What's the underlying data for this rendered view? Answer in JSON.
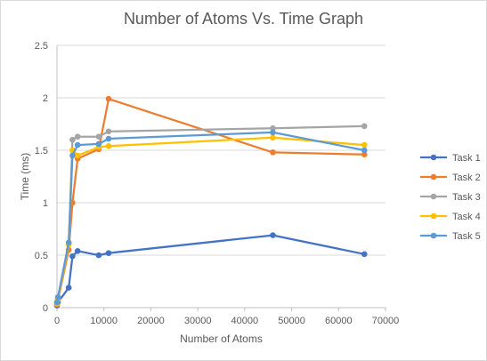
{
  "chart_data": {
    "type": "scatter",
    "title": "Number of Atoms Vs. Time Graph",
    "xlabel": "Number  of Atoms",
    "ylabel": "Time (ms)",
    "xlim": [
      0,
      70000
    ],
    "ylim": [
      0,
      2.5
    ],
    "xticks": [
      "0",
      "10000",
      "20000",
      "30000",
      "40000",
      "50000",
      "60000",
      "70000"
    ],
    "yticks": [
      "0",
      "0.5",
      "1",
      "1.5",
      "2",
      "2.5"
    ],
    "grid": "horizontal",
    "legend_position": "right",
    "x": [
      0,
      200,
      2500,
      3300,
      4400,
      8900,
      11000,
      46000,
      65500
    ],
    "series": [
      {
        "name": "Task 1",
        "color": "#4472C4",
        "values": [
          0.02,
          0.05,
          0.19,
          0.49,
          0.54,
          0.5,
          0.52,
          0.69,
          0.51
        ]
      },
      {
        "name": "Task 2",
        "color": "#ED7D31",
        "values": [
          0.03,
          0.07,
          0.55,
          1.0,
          1.42,
          1.51,
          1.99,
          1.48,
          1.46
        ]
      },
      {
        "name": "Task 3",
        "color": "#A5A5A5",
        "values": [
          0.05,
          0.09,
          0.62,
          1.6,
          1.63,
          1.63,
          1.68,
          1.71,
          1.73
        ]
      },
      {
        "name": "Task 4",
        "color": "#FFC000",
        "values": [
          0.04,
          0.08,
          0.6,
          1.5,
          1.45,
          1.53,
          1.54,
          1.62,
          1.55
        ]
      },
      {
        "name": "Task 5",
        "color": "#5B9BD5",
        "values": [
          0.05,
          0.1,
          0.62,
          1.45,
          1.55,
          1.56,
          1.61,
          1.67,
          1.5
        ]
      }
    ]
  }
}
